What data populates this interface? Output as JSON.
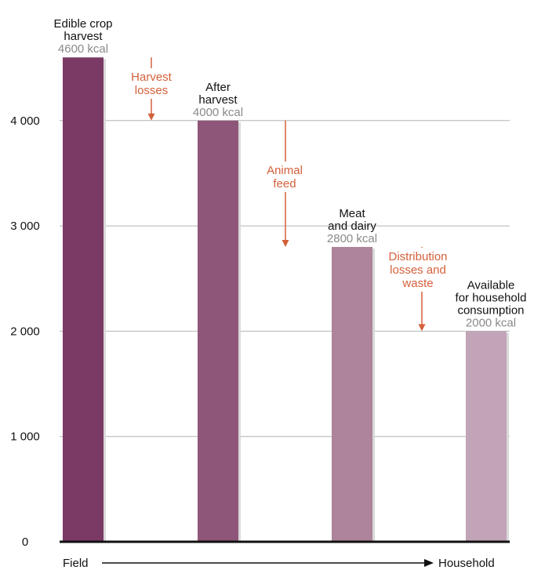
{
  "chart_data": {
    "type": "bar",
    "categories": [
      "Edible crop harvest",
      "After harvest",
      "Meat and dairy",
      "Available for household consumption"
    ],
    "values": [
      4600,
      4000,
      2800,
      2000
    ],
    "ylim": [
      0,
      4600
    ],
    "yticks": [
      0,
      1000,
      2000,
      3000,
      4000
    ],
    "ytick_labels": [
      "0",
      "1 000",
      "2 000",
      "3 000",
      "4 000"
    ],
    "grid": true,
    "bar_labels": [
      {
        "lines": [
          "Edible crop",
          "harvest"
        ],
        "value": "4600 kcal"
      },
      {
        "lines": [
          "After",
          "harvest"
        ],
        "value": "4000 kcal"
      },
      {
        "lines": [
          "Meat",
          "and dairy"
        ],
        "value": "2800 kcal"
      },
      {
        "lines": [
          "Available",
          "for household",
          "consumption"
        ],
        "value": "2000 kcal"
      }
    ],
    "annotations": [
      {
        "lines": [
          "Harvest",
          "losses"
        ],
        "from": 4600,
        "to": 4000
      },
      {
        "lines": [
          "Animal",
          "feed"
        ],
        "from": 4000,
        "to": 2800
      },
      {
        "lines": [
          "Distribution",
          "losses and",
          "waste"
        ],
        "from": 2800,
        "to": 2000
      }
    ],
    "x_axis": {
      "start_label": "Field",
      "end_label": "Household"
    }
  },
  "colors": {
    "bars": [
      "#7b3a66",
      "#8e5679",
      "#ad8499",
      "#c1a4b7"
    ],
    "annotation": "#d4603a",
    "value_label": "#8a8a8a",
    "grid": "#b4b4b4",
    "axis": "#111111",
    "text": "#111111"
  }
}
